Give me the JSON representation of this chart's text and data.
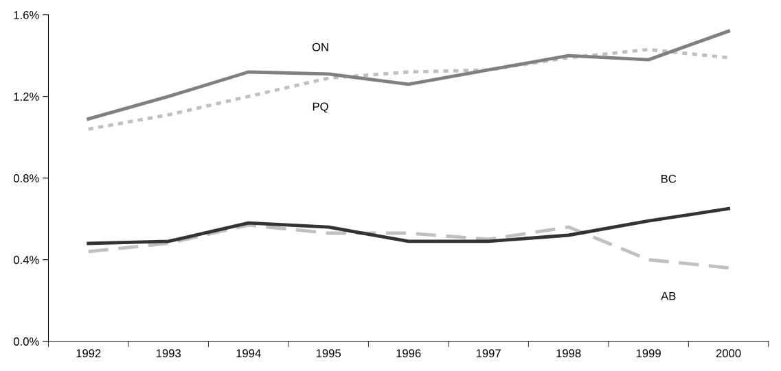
{
  "chart_data": {
    "type": "line",
    "categories": [
      "1992",
      "1993",
      "1994",
      "1995",
      "1996",
      "1997",
      "1998",
      "1999",
      "2000"
    ],
    "ylim": [
      0,
      1.6
    ],
    "yticks": [
      {
        "value": 0,
        "label": "0.0%"
      },
      {
        "value": 0.4,
        "label": "0.4%"
      },
      {
        "value": 0.8,
        "label": "0.8%"
      },
      {
        "value": 1.2,
        "label": "1.2%"
      },
      {
        "value": 1.6,
        "label": "1.6%"
      }
    ],
    "grid": false,
    "legend": false,
    "marker": "none",
    "series": [
      {
        "name": "ON",
        "color": "#808080",
        "line_style": "solid",
        "values": [
          1.09,
          1.2,
          1.32,
          1.31,
          1.26,
          1.33,
          1.4,
          1.38,
          1.52
        ]
      },
      {
        "name": "PQ",
        "color": "#c0c0c0",
        "line_style": "dotted",
        "values": [
          1.04,
          1.11,
          1.2,
          1.29,
          1.32,
          1.33,
          1.39,
          1.43,
          1.39
        ]
      },
      {
        "name": "BC",
        "color": "#333333",
        "line_style": "solid",
        "values": [
          0.48,
          0.49,
          0.58,
          0.56,
          0.49,
          0.49,
          0.52,
          0.59,
          0.65
        ]
      },
      {
        "name": "AB",
        "color": "#c0c0c0",
        "line_style": "dashed",
        "values": [
          0.44,
          0.48,
          0.57,
          0.53,
          0.53,
          0.5,
          0.56,
          0.4,
          0.36
        ]
      }
    ]
  }
}
